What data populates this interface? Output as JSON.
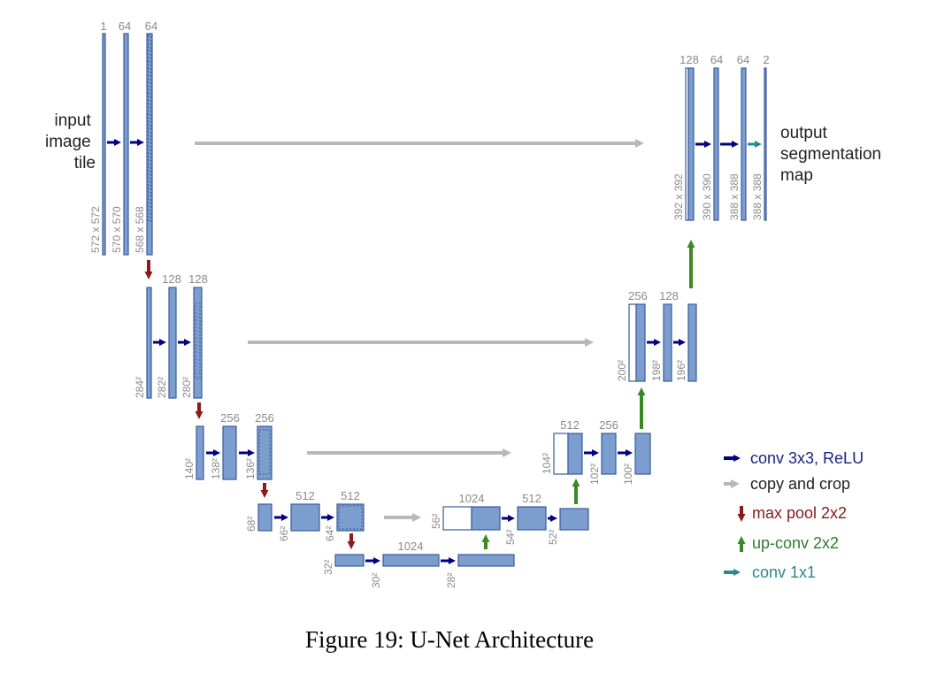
{
  "input_label": [
    "input",
    "image",
    "tile"
  ],
  "output_label": [
    "output",
    "segmentation",
    "map"
  ],
  "channels": {
    "l1_a": "1",
    "l1_b": "64",
    "l1_c": "64",
    "l2_a": "128",
    "l2_b": "128",
    "l3_a": "256",
    "l3_b": "256",
    "l4_a": "512",
    "l4_b": "512",
    "l5_a": "1024",
    "u4_a": "1024",
    "u4_b": "512",
    "u3_a": "512",
    "u3_b": "256",
    "u2_a": "256",
    "u2_b": "128",
    "u1_a": "128",
    "u1_b": "64",
    "u1_c": "64",
    "u1_d": "2"
  },
  "sizes": {
    "l1_a": "572 x 572",
    "l1_b": "570 x 570",
    "l1_c": "568 x 568",
    "l2_a": "284²",
    "l2_b": "282²",
    "l2_c": "280²",
    "l3_a": "140²",
    "l3_b": "138²",
    "l3_c": "136²",
    "l4_a": "68²",
    "l4_b": "66²",
    "l4_c": "64²",
    "l5_a": "32²",
    "l5_b": "30²",
    "l5_c": "28²",
    "u4_a": "56²",
    "u4_b": "54²",
    "u4_c": "52²",
    "u3_a": "104²",
    "u3_b": "102²",
    "u3_c": "100²",
    "u2_a": "200²",
    "u2_b": "198²",
    "u2_c": "196²",
    "u1_a": "392 x 392",
    "u1_b": "390 x 390",
    "u1_c": "388 x 388",
    "u1_d": "388 x 388"
  },
  "legend": [
    {
      "label": "conv 3x3, ReLU",
      "color": "#1a237e"
    },
    {
      "label": "copy and crop",
      "color": "#222222"
    },
    {
      "label": "max pool 2x2",
      "color": "#8b1a1a"
    },
    {
      "label": "up-conv 2x2",
      "color": "#2e7d32"
    },
    {
      "label": "conv 1x1",
      "color": "#2a8a8a"
    }
  ],
  "colors": {
    "conv": "#000080",
    "copy": "#b8b8b8",
    "pool": "#8b1a1a",
    "upconv": "#3a8a24",
    "conv1x1": "#2a8a8a"
  },
  "caption": "Figure 19: U-Net Architecture"
}
